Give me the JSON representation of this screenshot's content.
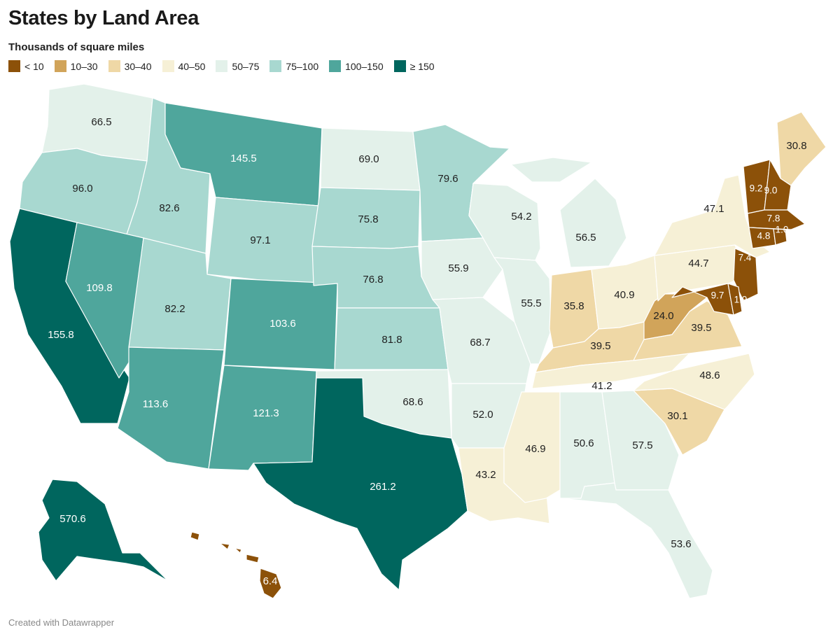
{
  "title": "States by Land Area",
  "subtitle": "Thousands of square miles",
  "footer": "Created with Datawrapper",
  "legend": [
    {
      "label": "< 10",
      "color": "#8c5109"
    },
    {
      "label": "10–30",
      "color": "#d1a45a"
    },
    {
      "label": "30–40",
      "color": "#efd8a6"
    },
    {
      "label": "40–50",
      "color": "#f6f0d6"
    },
    {
      "label": "50–75",
      "color": "#e3f1ea"
    },
    {
      "label": "75–100",
      "color": "#a8d8d0"
    },
    {
      "label": "100–150",
      "color": "#4fa69c"
    },
    {
      "label": "≥ 150",
      "color": "#00665e"
    }
  ],
  "states": [
    {
      "name": "Washington",
      "value": 66.5,
      "label": "66.5"
    },
    {
      "name": "Oregon",
      "value": 96.0,
      "label": "96.0"
    },
    {
      "name": "California",
      "value": 155.8,
      "label": "155.8"
    },
    {
      "name": "Idaho",
      "value": 82.6,
      "label": "82.6"
    },
    {
      "name": "Nevada",
      "value": 109.8,
      "label": "109.8"
    },
    {
      "name": "Montana",
      "value": 145.5,
      "label": "145.5"
    },
    {
      "name": "Wyoming",
      "value": 97.1,
      "label": "97.1"
    },
    {
      "name": "Utah",
      "value": 82.2,
      "label": "82.2"
    },
    {
      "name": "Arizona",
      "value": 113.6,
      "label": "113.6"
    },
    {
      "name": "Colorado",
      "value": 103.6,
      "label": "103.6"
    },
    {
      "name": "New Mexico",
      "value": 121.3,
      "label": "121.3"
    },
    {
      "name": "North Dakota",
      "value": 69.0,
      "label": "69.0"
    },
    {
      "name": "South Dakota",
      "value": 75.8,
      "label": "75.8"
    },
    {
      "name": "Nebraska",
      "value": 76.8,
      "label": "76.8"
    },
    {
      "name": "Kansas",
      "value": 81.8,
      "label": "81.8"
    },
    {
      "name": "Oklahoma",
      "value": 68.6,
      "label": "68.6"
    },
    {
      "name": "Texas",
      "value": 261.2,
      "label": "261.2"
    },
    {
      "name": "Minnesota",
      "value": 79.6,
      "label": "79.6"
    },
    {
      "name": "Iowa",
      "value": 55.9,
      "label": "55.9"
    },
    {
      "name": "Missouri",
      "value": 68.7,
      "label": "68.7"
    },
    {
      "name": "Arkansas",
      "value": 52.0,
      "label": "52.0"
    },
    {
      "name": "Louisiana",
      "value": 43.2,
      "label": "43.2"
    },
    {
      "name": "Wisconsin",
      "value": 54.2,
      "label": "54.2"
    },
    {
      "name": "Illinois",
      "value": 55.5,
      "label": "55.5"
    },
    {
      "name": "Michigan",
      "value": 56.5,
      "label": "56.5"
    },
    {
      "name": "Indiana",
      "value": 35.8,
      "label": "35.8"
    },
    {
      "name": "Ohio",
      "value": 40.9,
      "label": "40.9"
    },
    {
      "name": "Kentucky",
      "value": 39.5,
      "label": "39.5"
    },
    {
      "name": "Tennessee",
      "value": 41.2,
      "label": "41.2"
    },
    {
      "name": "Mississippi",
      "value": 46.9,
      "label": "46.9"
    },
    {
      "name": "Alabama",
      "value": 50.6,
      "label": "50.6"
    },
    {
      "name": "Georgia",
      "value": 57.5,
      "label": "57.5"
    },
    {
      "name": "Florida",
      "value": 53.6,
      "label": "53.6"
    },
    {
      "name": "South Carolina",
      "value": 30.1,
      "label": "30.1"
    },
    {
      "name": "North Carolina",
      "value": 48.6,
      "label": "48.6"
    },
    {
      "name": "Virginia",
      "value": 39.5,
      "label": "39.5"
    },
    {
      "name": "West Virginia",
      "value": 24.0,
      "label": "24.0"
    },
    {
      "name": "Pennsylvania",
      "value": 44.7,
      "label": "44.7"
    },
    {
      "name": "New York",
      "value": 47.1,
      "label": "47.1"
    },
    {
      "name": "Maine",
      "value": 30.8,
      "label": "30.8"
    },
    {
      "name": "Vermont",
      "value": 9.2,
      "label": "9.2"
    },
    {
      "name": "New Hampshire",
      "value": 9.0,
      "label": "9.0"
    },
    {
      "name": "Massachusetts",
      "value": 7.8,
      "label": "7.8"
    },
    {
      "name": "Connecticut",
      "value": 4.8,
      "label": "4.8"
    },
    {
      "name": "Rhode Island",
      "value": 1.0,
      "label": "1.0"
    },
    {
      "name": "New Jersey",
      "value": 7.4,
      "label": "7.4"
    },
    {
      "name": "Maryland",
      "value": 9.7,
      "label": "9.7"
    },
    {
      "name": "Delaware",
      "value": 1.9,
      "label": "1.9"
    },
    {
      "name": "Alaska",
      "value": 570.6,
      "label": "570.6"
    },
    {
      "name": "Hawaii",
      "value": 6.4,
      "label": "6.4"
    }
  ]
}
